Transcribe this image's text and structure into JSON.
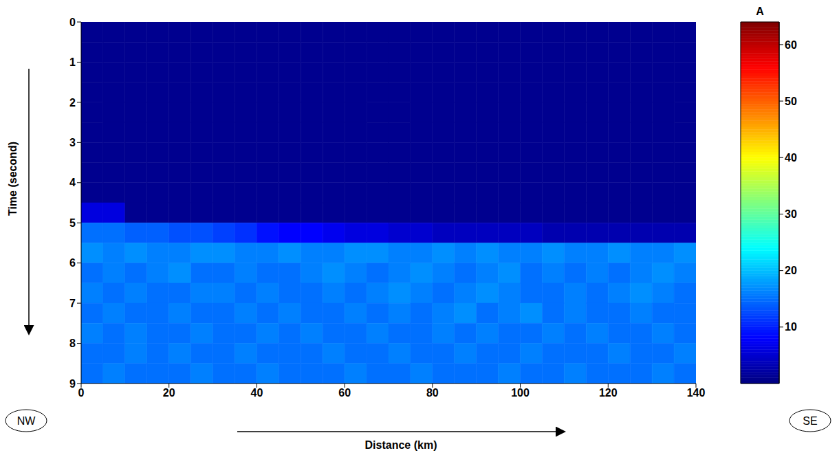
{
  "chart_data": {
    "type": "heatmap",
    "x_label": "Distance (km)",
    "y_label": "Time (second)",
    "xlim": [
      0,
      140
    ],
    "xticks": [
      0,
      20,
      40,
      60,
      80,
      100,
      120,
      140
    ],
    "ylim": [
      0,
      9
    ],
    "yticks": [
      0,
      1,
      2,
      3,
      4,
      5,
      6,
      7,
      8,
      9
    ],
    "x_bins": [
      0,
      5,
      10,
      15,
      20,
      25,
      30,
      35,
      40,
      45,
      50,
      55,
      60,
      65,
      70,
      75,
      80,
      85,
      90,
      95,
      100,
      105,
      110,
      115,
      120,
      125,
      130,
      135,
      140
    ],
    "y_bins": [
      0,
      0.5,
      1,
      1.5,
      2,
      2.5,
      3,
      3.5,
      4,
      4.5,
      5,
      5.5,
      6,
      6.5,
      7,
      7.5,
      8,
      8.5,
      9
    ],
    "cells": [
      [
        1,
        1,
        1,
        1,
        1,
        1,
        1,
        1,
        1,
        1,
        1,
        1,
        1,
        1,
        1,
        1,
        1,
        1,
        1,
        1,
        1,
        1,
        1,
        1,
        1,
        1,
        1,
        1
      ],
      [
        1,
        1,
        1,
        1,
        1,
        1,
        1,
        1,
        1,
        1,
        1,
        1,
        1,
        1,
        1,
        1,
        1,
        1,
        1,
        1,
        1,
        1,
        1,
        1,
        1,
        1,
        1,
        1
      ],
      [
        1,
        1,
        1,
        1,
        1,
        1,
        1,
        1,
        1,
        1,
        1,
        1,
        1,
        1,
        1,
        1,
        1,
        1,
        1,
        1,
        1,
        1,
        1,
        1,
        1,
        1,
        1,
        1
      ],
      [
        1,
        1,
        1,
        1,
        1,
        1,
        1,
        1,
        1,
        1,
        1,
        1,
        1,
        1,
        1,
        1,
        1,
        1,
        1,
        1,
        1,
        1,
        1,
        1,
        1,
        1,
        1,
        1
      ],
      [
        1,
        1,
        1,
        1,
        1,
        1,
        1,
        1,
        1,
        1,
        1,
        1,
        1,
        1,
        1,
        1,
        1,
        1,
        1,
        1,
        1,
        1,
        1,
        1,
        1,
        1,
        1,
        1
      ],
      [
        1,
        1,
        1,
        1,
        1,
        1,
        1,
        1,
        1,
        1,
        1,
        1,
        1,
        1,
        1,
        1,
        1,
        1,
        1,
        1,
        1,
        1,
        1,
        1,
        1,
        1,
        1,
        1
      ],
      [
        1,
        1,
        1,
        1,
        1,
        1,
        1,
        1,
        1,
        1,
        1,
        1,
        1,
        1,
        1,
        1,
        1,
        1,
        1,
        1,
        1,
        1,
        1,
        1,
        1,
        1,
        1,
        1
      ],
      [
        1,
        1,
        1,
        1,
        1,
        1,
        1,
        1,
        1,
        1,
        1,
        1,
        1,
        1,
        1,
        1,
        1,
        1,
        1,
        1,
        1,
        1,
        1,
        1,
        1,
        1,
        1,
        1
      ],
      [
        1,
        1,
        1,
        1,
        1,
        1,
        1,
        1,
        1,
        1,
        1,
        1,
        1,
        1,
        1,
        1,
        1,
        1,
        1,
        1,
        1,
        1,
        1,
        1,
        1,
        1,
        1,
        1
      ],
      [
        6,
        6,
        1,
        1,
        1,
        1,
        1,
        1,
        1,
        1,
        1,
        1,
        1,
        1,
        1,
        1,
        1,
        1,
        1,
        1,
        1,
        1,
        1,
        1,
        1,
        1,
        1,
        1
      ],
      [
        15,
        15,
        14,
        14,
        13,
        13,
        12,
        11,
        9,
        8,
        8,
        7,
        6,
        6,
        5,
        5,
        4,
        4,
        4,
        4,
        4,
        3,
        3,
        3,
        3,
        3,
        3,
        3
      ],
      [
        17,
        16,
        17,
        16,
        16,
        17,
        17,
        16,
        16,
        17,
        16,
        16,
        17,
        17,
        16,
        16,
        17,
        16,
        17,
        16,
        16,
        17,
        16,
        16,
        17,
        16,
        16,
        17
      ],
      [
        15,
        16,
        15,
        16,
        17,
        15,
        15,
        16,
        15,
        15,
        16,
        17,
        16,
        15,
        16,
        17,
        16,
        15,
        16,
        17,
        15,
        16,
        15,
        16,
        15,
        16,
        17,
        16
      ],
      [
        16,
        15,
        16,
        15,
        15,
        16,
        16,
        15,
        16,
        15,
        15,
        16,
        15,
        16,
        17,
        16,
        15,
        16,
        17,
        16,
        15,
        15,
        16,
        15,
        16,
        17,
        16,
        15
      ],
      [
        15,
        16,
        15,
        15,
        16,
        15,
        15,
        16,
        15,
        16,
        15,
        15,
        16,
        15,
        16,
        15,
        16,
        17,
        15,
        16,
        17,
        15,
        16,
        15,
        15,
        16,
        15,
        15
      ],
      [
        16,
        15,
        16,
        15,
        15,
        16,
        15,
        15,
        16,
        15,
        16,
        15,
        15,
        16,
        15,
        15,
        16,
        15,
        16,
        15,
        15,
        16,
        15,
        16,
        15,
        15,
        16,
        15
      ],
      [
        15,
        15,
        16,
        15,
        16,
        15,
        15,
        16,
        15,
        15,
        15,
        16,
        15,
        15,
        16,
        15,
        15,
        16,
        15,
        15,
        16,
        15,
        15,
        15,
        16,
        15,
        15,
        16
      ],
      [
        15,
        16,
        15,
        15,
        15,
        16,
        15,
        15,
        16,
        15,
        15,
        15,
        16,
        15,
        15,
        16,
        15,
        15,
        15,
        16,
        15,
        15,
        16,
        15,
        15,
        15,
        16,
        15
      ]
    ],
    "colorbar": {
      "label": "A",
      "range": [
        0,
        64
      ],
      "ticks": [
        10,
        20,
        30,
        40,
        50,
        60
      ]
    },
    "annotations": [
      "NW",
      "SE"
    ]
  }
}
